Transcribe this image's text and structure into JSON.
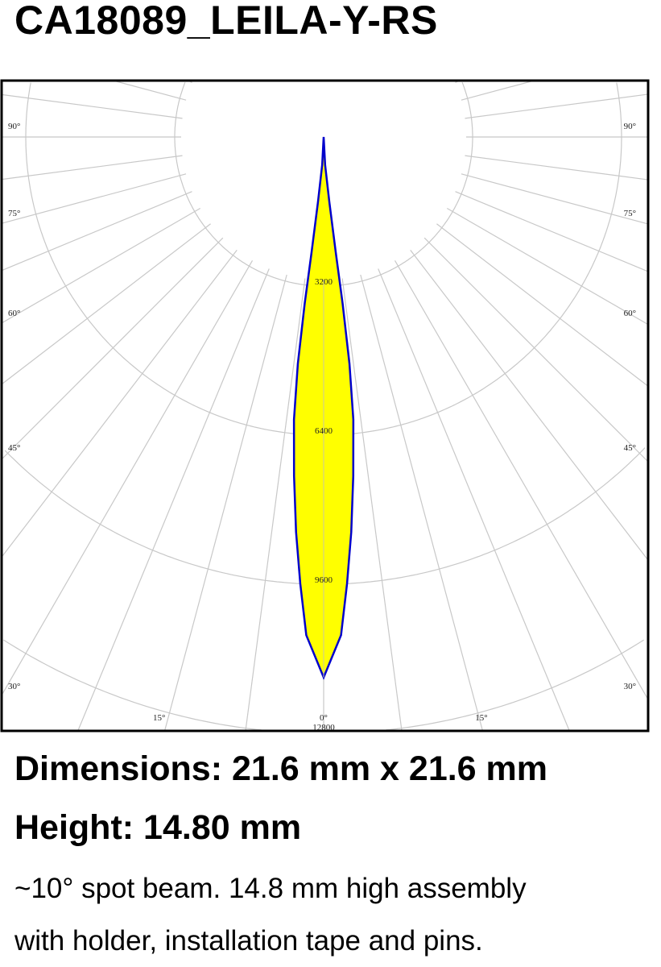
{
  "title": "CA18089_LEILA-Y-RS",
  "chart_data": {
    "type": "polar",
    "title": "",
    "radial_ticks": [
      3200,
      6400,
      9600,
      12800
    ],
    "radial_tick_labels": [
      "3200",
      "6400",
      "9600",
      "12800"
    ],
    "angle_labels": {
      "left": [
        "90°",
        "75°",
        "60°",
        "45°",
        "30°",
        "15°"
      ],
      "bottom": [
        "15°",
        "0°",
        "15°"
      ],
      "right": [
        "90°",
        "75°",
        "60°",
        "45°",
        "30°"
      ]
    },
    "series": [
      {
        "angles_deg": [
          0,
          2,
          3,
          4,
          5,
          6,
          6.5,
          6.5,
          6,
          5,
          3,
          0
        ],
        "intensity": [
          11600,
          10700,
          9600,
          8500,
          7300,
          6100,
          4900,
          3600,
          2500,
          1400,
          600,
          0
        ]
      }
    ],
    "grid": true,
    "fill_color": "#ffff00",
    "line_color": "#0000cc"
  },
  "specs": {
    "dimensions": "Dimensions: 21.6 mm x 21.6 mm",
    "height": "Height: 14.80 mm",
    "description_line1": "~10° spot beam. 14.8 mm high assembly",
    "description_line2": "with holder, installation tape and pins."
  }
}
